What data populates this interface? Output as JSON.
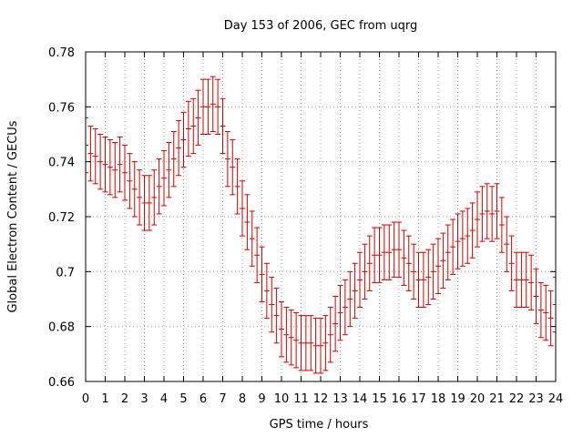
{
  "chart_data": {
    "type": "line",
    "title": "Day 153 of 2006, GEC from uqrg",
    "xlabel": "GPS time / hours",
    "ylabel": "Global Electron Content / GECUs",
    "xlim": [
      0,
      24
    ],
    "ylim": [
      0.66,
      0.78
    ],
    "x_ticks": [
      "0",
      "1",
      "2",
      "3",
      "4",
      "5",
      "6",
      "7",
      "8",
      "9",
      "10",
      "11",
      "12",
      "13",
      "14",
      "15",
      "16",
      "17",
      "18",
      "19",
      "20",
      "21",
      "22",
      "23",
      "24"
    ],
    "y_ticks": [
      "0.66",
      "0.68",
      "0.7",
      "0.72",
      "0.74",
      "0.76",
      "0.78"
    ],
    "grid": true,
    "series_color": "#cc0000",
    "error_bar": 0.01,
    "x": [
      0,
      0.25,
      0.5,
      0.75,
      1,
      1.25,
      1.5,
      1.75,
      2,
      2.25,
      2.5,
      2.75,
      3,
      3.25,
      3.5,
      3.75,
      4,
      4.25,
      4.5,
      4.75,
      5,
      5.25,
      5.5,
      5.75,
      6,
      6.25,
      6.5,
      6.75,
      7,
      7.25,
      7.5,
      7.75,
      8,
      8.25,
      8.5,
      8.75,
      9,
      9.25,
      9.5,
      9.75,
      10,
      10.25,
      10.5,
      10.75,
      11,
      11.25,
      11.5,
      11.75,
      12,
      12.25,
      12.5,
      12.75,
      13,
      13.25,
      13.5,
      13.75,
      14,
      14.25,
      14.5,
      14.75,
      15,
      15.25,
      15.5,
      15.75,
      16,
      16.25,
      16.5,
      16.75,
      17,
      17.25,
      17.5,
      17.75,
      18,
      18.25,
      18.5,
      18.75,
      19,
      19.25,
      19.5,
      19.75,
      20,
      20.25,
      20.5,
      20.75,
      21,
      21.25,
      21.5,
      21.75,
      22,
      22.25,
      22.5,
      22.75,
      23,
      23.25,
      23.5,
      23.75,
      24
    ],
    "values": [
      0.746,
      0.743,
      0.742,
      0.74,
      0.739,
      0.738,
      0.737,
      0.739,
      0.736,
      0.733,
      0.73,
      0.727,
      0.725,
      0.725,
      0.727,
      0.731,
      0.734,
      0.737,
      0.741,
      0.745,
      0.748,
      0.752,
      0.753,
      0.756,
      0.76,
      0.76,
      0.761,
      0.76,
      0.753,
      0.741,
      0.738,
      0.731,
      0.723,
      0.718,
      0.712,
      0.706,
      0.699,
      0.693,
      0.688,
      0.684,
      0.679,
      0.677,
      0.676,
      0.675,
      0.674,
      0.674,
      0.674,
      0.673,
      0.673,
      0.674,
      0.677,
      0.681,
      0.685,
      0.687,
      0.69,
      0.693,
      0.697,
      0.7,
      0.703,
      0.706,
      0.706,
      0.707,
      0.707,
      0.708,
      0.708,
      0.705,
      0.703,
      0.7,
      0.697,
      0.697,
      0.698,
      0.7,
      0.702,
      0.704,
      0.707,
      0.709,
      0.711,
      0.712,
      0.713,
      0.715,
      0.719,
      0.721,
      0.722,
      0.721,
      0.722,
      0.717,
      0.71,
      0.703,
      0.697,
      0.697,
      0.697,
      0.696,
      0.691,
      0.686,
      0.685,
      0.683,
      0.688
    ]
  }
}
